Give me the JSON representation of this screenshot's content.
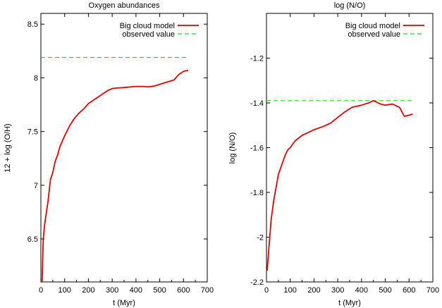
{
  "chart_data": [
    {
      "type": "line",
      "title": "Oxygen abundances",
      "xlabel": "t (Myr)",
      "ylabel": "12 + log (O/H)",
      "xlim": [
        0,
        700
      ],
      "ylim": [
        6.1,
        8.6
      ],
      "xticks": [
        0,
        100,
        200,
        300,
        400,
        500,
        600,
        700
      ],
      "yticks": [
        6.5,
        7,
        7.5,
        8,
        8.5
      ],
      "ytick_labels": [
        "6.5",
        "7",
        "7.5",
        "8",
        "8.5"
      ],
      "legend_position": "top-right",
      "series": [
        {
          "name": "Big cloud model",
          "color": "#e00000",
          "style": "solid",
          "x": [
            5,
            8,
            10,
            15,
            20,
            30,
            40,
            50,
            60,
            70,
            80,
            90,
            100,
            120,
            140,
            160,
            180,
            200,
            220,
            240,
            260,
            280,
            300,
            320,
            350,
            400,
            430,
            450,
            480,
            500,
            530,
            560,
            580,
            600,
            620
          ],
          "y": [
            6.1,
            6.35,
            6.5,
            6.62,
            6.7,
            6.85,
            7.05,
            7.12,
            7.22,
            7.28,
            7.36,
            7.41,
            7.46,
            7.55,
            7.62,
            7.67,
            7.71,
            7.76,
            7.79,
            7.82,
            7.85,
            7.88,
            7.9,
            7.905,
            7.91,
            7.92,
            7.92,
            7.915,
            7.925,
            7.94,
            7.96,
            7.98,
            8.03,
            8.06,
            8.07
          ]
        },
        {
          "name": "observed value",
          "color": "#33cc33",
          "style": "dashed",
          "x": [
            0,
            620
          ],
          "y": [
            8.19,
            8.19
          ]
        }
      ]
    },
    {
      "type": "line",
      "title": "log (N/O)",
      "xlabel": "t (Myr)",
      "ylabel": "log (N/O)",
      "xlim": [
        0,
        700
      ],
      "ylim": [
        -2.2,
        -1.0
      ],
      "xticks": [
        0,
        100,
        200,
        300,
        400,
        500,
        600,
        700
      ],
      "yticks": [
        -2.2,
        -2.0,
        -1.8,
        -1.6,
        -1.4,
        -1.2
      ],
      "ytick_labels": [
        "-2.2",
        "-2",
        "-1.8",
        "-1.6",
        "-1.4",
        "-1.2"
      ],
      "legend_position": "top-right",
      "series": [
        {
          "name": "Big cloud model",
          "color": "#e00000",
          "style": "solid",
          "x": [
            3,
            5,
            10,
            20,
            30,
            40,
            50,
            60,
            70,
            80,
            90,
            100,
            120,
            150,
            180,
            200,
            240,
            270,
            300,
            330,
            360,
            400,
            430,
            450,
            460,
            480,
            500,
            530,
            560,
            580,
            600,
            615
          ],
          "y": [
            -2.15,
            -2.12,
            -2.05,
            -1.92,
            -1.84,
            -1.78,
            -1.72,
            -1.69,
            -1.66,
            -1.63,
            -1.61,
            -1.6,
            -1.57,
            -1.545,
            -1.53,
            -1.52,
            -1.505,
            -1.49,
            -1.465,
            -1.44,
            -1.42,
            -1.41,
            -1.4,
            -1.39,
            -1.395,
            -1.405,
            -1.41,
            -1.405,
            -1.42,
            -1.46,
            -1.455,
            -1.45
          ]
        },
        {
          "name": "observed value",
          "color": "#33cc33",
          "style": "dashed",
          "x": [
            0,
            620
          ],
          "y": [
            -1.39,
            -1.39
          ]
        }
      ]
    }
  ]
}
